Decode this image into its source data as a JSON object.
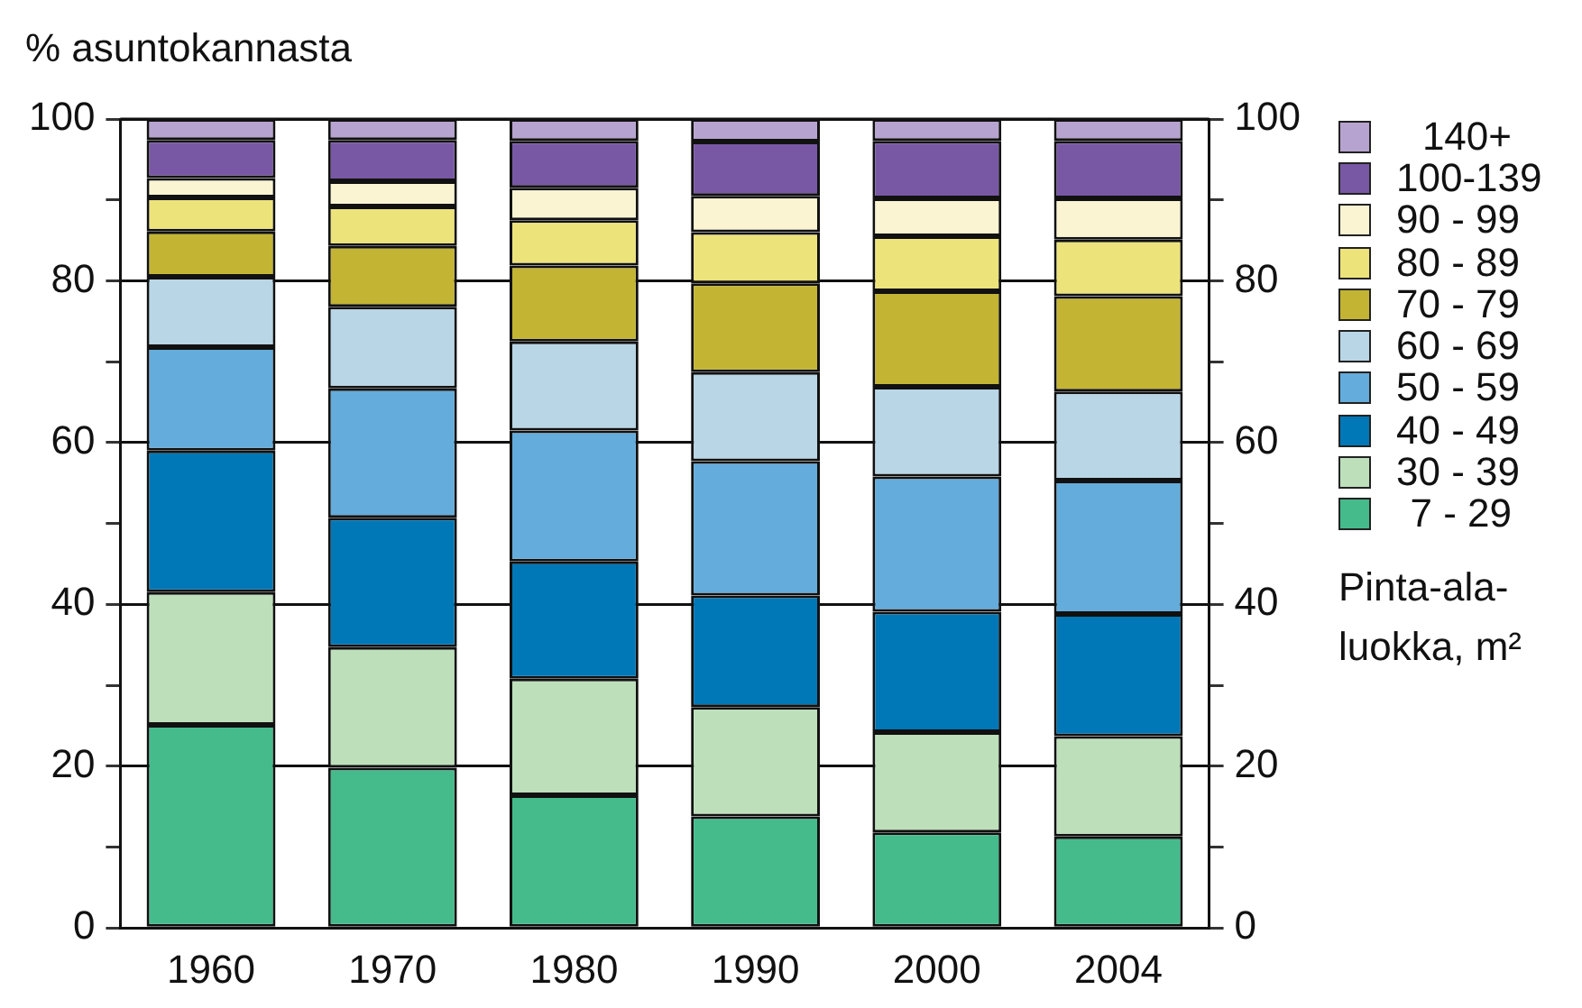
{
  "chart_data": {
    "type": "bar",
    "stacked": true,
    "ylabel": "% asuntokannasta",
    "legend_title": "Pinta-ala-luokka, m²",
    "categories": [
      "1960",
      "1970",
      "1980",
      "1990",
      "2000",
      "2004"
    ],
    "series": [
      {
        "name": "7 - 29",
        "color": "#45bb8b",
        "values": [
          25.1,
          19.8,
          16.4,
          13.8,
          11.8,
          11.3
        ]
      },
      {
        "name": "30 - 39",
        "color": "#bde0bb",
        "values": [
          16.4,
          14.9,
          14.4,
          13.5,
          12.4,
          12.4
        ]
      },
      {
        "name": "40 - 49",
        "color": "#0077b6",
        "values": [
          17.5,
          16.0,
          14.5,
          13.8,
          14.9,
          15.1
        ]
      },
      {
        "name": "50 - 59",
        "color": "#64acdb",
        "values": [
          12.8,
          16.0,
          16.2,
          16.6,
          16.7,
          16.5
        ]
      },
      {
        "name": "60 - 69",
        "color": "#b8d6e6",
        "values": [
          8.7,
          10.1,
          11.0,
          11.0,
          11.1,
          11.0
        ]
      },
      {
        "name": "70 - 79",
        "color": "#c3b433",
        "values": [
          5.6,
          7.5,
          9.4,
          11.0,
          11.8,
          11.8
        ]
      },
      {
        "name": "80 - 89",
        "color": "#ede37b",
        "values": [
          4.2,
          4.9,
          5.6,
          6.3,
          6.8,
          7.0
        ]
      },
      {
        "name": "90 - 99",
        "color": "#faf4d2",
        "values": [
          2.4,
          3.1,
          4.0,
          4.5,
          4.7,
          5.1
        ]
      },
      {
        "name": "100-139",
        "color": "#7858a4",
        "values": [
          4.7,
          5.1,
          5.8,
          6.7,
          7.1,
          7.1
        ]
      },
      {
        "name": "140+",
        "color": "#b7a3cf",
        "values": [
          2.6,
          2.6,
          2.7,
          2.8,
          2.7,
          2.7
        ]
      }
    ],
    "ylim": [
      0,
      100
    ],
    "yticks": [
      0,
      {
        "value": 10,
        "label": null
      },
      20,
      {
        "value": 30,
        "label": null
      },
      40,
      {
        "value": 50,
        "label": null
      },
      60,
      {
        "value": 70,
        "label": null
      },
      80,
      {
        "value": 90,
        "label": null
      },
      100
    ],
    "y2lim": [
      0,
      100
    ],
    "y2ticks": [
      0,
      {
        "value": 10,
        "label": null
      },
      20,
      {
        "value": 30,
        "label": null
      },
      40,
      {
        "value": 50,
        "label": null
      },
      60,
      {
        "value": 70,
        "label": null
      },
      80,
      {
        "value": 90,
        "label": null
      },
      100
    ],
    "grid": "y",
    "legend": "right"
  }
}
